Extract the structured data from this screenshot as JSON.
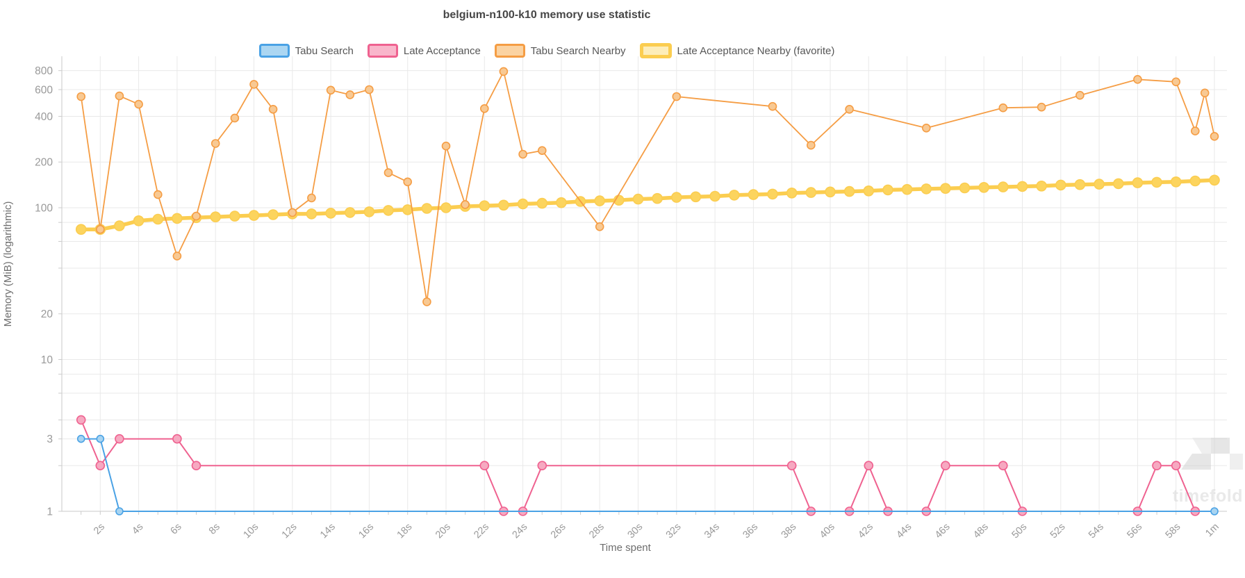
{
  "title": "belgium-n100-k10 memory use statistic",
  "watermark": {
    "text": "timefold"
  },
  "axes": {
    "x_title": "Time spent",
    "y_title": "Memory (MiB) (logarithmic)",
    "x_ticks": [
      {
        "t": 2,
        "label": "2s"
      },
      {
        "t": 4,
        "label": "4s"
      },
      {
        "t": 6,
        "label": "6s"
      },
      {
        "t": 8,
        "label": "8s"
      },
      {
        "t": 10,
        "label": "10s"
      },
      {
        "t": 12,
        "label": "12s"
      },
      {
        "t": 14,
        "label": "14s"
      },
      {
        "t": 16,
        "label": "16s"
      },
      {
        "t": 18,
        "label": "18s"
      },
      {
        "t": 20,
        "label": "20s"
      },
      {
        "t": 22,
        "label": "22s"
      },
      {
        "t": 24,
        "label": "24s"
      },
      {
        "t": 26,
        "label": "26s"
      },
      {
        "t": 28,
        "label": "28s"
      },
      {
        "t": 30,
        "label": "30s"
      },
      {
        "t": 32,
        "label": "32s"
      },
      {
        "t": 34,
        "label": "34s"
      },
      {
        "t": 36,
        "label": "36s"
      },
      {
        "t": 38,
        "label": "38s"
      },
      {
        "t": 40,
        "label": "40s"
      },
      {
        "t": 42,
        "label": "42s"
      },
      {
        "t": 44,
        "label": "44s"
      },
      {
        "t": 46,
        "label": "46s"
      },
      {
        "t": 48,
        "label": "48s"
      },
      {
        "t": 50,
        "label": "50s"
      },
      {
        "t": 52,
        "label": "52s"
      },
      {
        "t": 54,
        "label": "54s"
      },
      {
        "t": 56,
        "label": "56s"
      },
      {
        "t": 58,
        "label": "58s"
      },
      {
        "t": 60,
        "label": "1m"
      }
    ],
    "y_ticks_labeled": [
      800,
      600,
      400,
      200,
      100,
      20,
      10,
      3,
      1
    ],
    "y_grid_unlabeled": [
      80,
      60,
      40,
      8,
      6,
      4,
      2
    ]
  },
  "chart_data": {
    "type": "line",
    "title": "belgium-n100-k10 memory use statistic",
    "xlabel": "Time spent",
    "ylabel": "Memory (MiB) (logarithmic)",
    "x_unit": "seconds",
    "y_scale": "logarithmic",
    "x_range": [
      0,
      61
    ],
    "y_range": [
      1,
      1000
    ],
    "grid": true,
    "legend_position": "top-center",
    "series": [
      {
        "name": "Tabu Search",
        "color": "#4AA2E5",
        "marker_fill": "#A8D4F1",
        "legend_fill": "#ABD6F2",
        "line_width": 2,
        "marker_radius": 5,
        "legend_border_width": 3,
        "points": [
          [
            1,
            3
          ],
          [
            2,
            3
          ],
          [
            3,
            1
          ],
          [
            60,
            1
          ]
        ]
      },
      {
        "name": "Late Acceptance",
        "color": "#EF6290",
        "marker_fill": "#F6A9C1",
        "legend_fill": "#F9B6CB",
        "line_width": 2,
        "marker_radius": 6,
        "legend_border_width": 3,
        "points": [
          [
            1,
            4
          ],
          [
            2,
            2
          ],
          [
            3,
            3
          ],
          [
            6,
            3
          ],
          [
            7,
            2
          ],
          [
            22,
            2
          ],
          [
            23,
            1
          ],
          [
            24,
            1
          ],
          [
            25,
            2
          ],
          [
            38,
            2
          ],
          [
            39,
            1
          ],
          [
            41,
            1
          ],
          [
            42,
            2
          ],
          [
            43,
            1
          ],
          [
            45,
            1
          ],
          [
            46,
            2
          ],
          [
            49,
            2
          ],
          [
            50,
            1
          ],
          [
            56,
            1
          ],
          [
            57,
            2
          ],
          [
            58,
            2
          ],
          [
            59,
            1
          ]
        ]
      },
      {
        "name": "Tabu Search Nearby",
        "color": "#F59D44",
        "marker_fill": "#F8C993",
        "legend_fill": "#FBD3A2",
        "line_width": 1.8,
        "marker_radius": 5.5,
        "legend_border_width": 3,
        "points": [
          [
            1,
            540
          ],
          [
            2,
            72
          ],
          [
            3,
            545
          ],
          [
            4,
            480
          ],
          [
            5,
            122
          ],
          [
            6,
            48
          ],
          [
            7,
            88
          ],
          [
            8,
            265
          ],
          [
            9,
            390
          ],
          [
            10,
            650
          ],
          [
            11,
            445
          ],
          [
            12,
            93
          ],
          [
            13,
            116
          ],
          [
            14,
            595
          ],
          [
            15,
            555
          ],
          [
            16,
            600
          ],
          [
            17,
            170
          ],
          [
            18,
            148
          ],
          [
            19,
            24
          ],
          [
            20,
            255
          ],
          [
            21,
            105
          ],
          [
            22,
            450
          ],
          [
            23,
            790
          ],
          [
            24,
            225
          ],
          [
            25,
            238
          ],
          [
            28,
            75
          ],
          [
            32,
            540
          ],
          [
            37,
            465
          ],
          [
            39,
            258
          ],
          [
            41,
            445
          ],
          [
            45,
            335
          ],
          [
            49,
            455
          ],
          [
            51,
            460
          ],
          [
            53,
            550
          ],
          [
            56,
            700
          ],
          [
            58,
            675
          ],
          [
            59,
            320
          ],
          [
            59.5,
            570
          ],
          [
            60,
            295
          ]
        ]
      },
      {
        "name": "Late Acceptance Nearby (favorite)",
        "color": "#FBCD50",
        "marker_fill": "#FCD45E",
        "legend_fill": "#FDEDB9",
        "line_width": 5.5,
        "marker_radius": 7,
        "legend_border_width": 5,
        "favorite": true,
        "points": [
          [
            1,
            72
          ],
          [
            2,
            72
          ],
          [
            3,
            76
          ],
          [
            4,
            82
          ],
          [
            5,
            84
          ],
          [
            6,
            85
          ],
          [
            7,
            86
          ],
          [
            8,
            87
          ],
          [
            9,
            88
          ],
          [
            10,
            89
          ],
          [
            11,
            90
          ],
          [
            12,
            91
          ],
          [
            13,
            91
          ],
          [
            14,
            92
          ],
          [
            15,
            93
          ],
          [
            16,
            94
          ],
          [
            17,
            96
          ],
          [
            18,
            97
          ],
          [
            19,
            99
          ],
          [
            20,
            100
          ],
          [
            21,
            102
          ],
          [
            22,
            103
          ],
          [
            23,
            104
          ],
          [
            24,
            106
          ],
          [
            25,
            107
          ],
          [
            26,
            108
          ],
          [
            27,
            110
          ],
          [
            28,
            111
          ],
          [
            29,
            112
          ],
          [
            30,
            114
          ],
          [
            31,
            115
          ],
          [
            32,
            117
          ],
          [
            33,
            118
          ],
          [
            34,
            119
          ],
          [
            35,
            121
          ],
          [
            36,
            122
          ],
          [
            37,
            123
          ],
          [
            38,
            125
          ],
          [
            39,
            126
          ],
          [
            40,
            127
          ],
          [
            41,
            128
          ],
          [
            42,
            129
          ],
          [
            43,
            131
          ],
          [
            44,
            132
          ],
          [
            45,
            133
          ],
          [
            46,
            134
          ],
          [
            47,
            135
          ],
          [
            48,
            136
          ],
          [
            49,
            137
          ],
          [
            50,
            138
          ],
          [
            51,
            139
          ],
          [
            52,
            141
          ],
          [
            53,
            142
          ],
          [
            54,
            143
          ],
          [
            55,
            144
          ],
          [
            56,
            146
          ],
          [
            57,
            147
          ],
          [
            58,
            148
          ],
          [
            59,
            150
          ],
          [
            60,
            152
          ]
        ]
      }
    ],
    "draw_order": [
      1,
      0,
      3,
      2
    ]
  },
  "style": {
    "grid_color": "#e9e9e9",
    "axis_color": "#c9c9c9",
    "tick_color": "#cccccc",
    "tick_label_color": "#999999",
    "axis_title_color": "#6e6e6e",
    "watermark_color": "#d8d8d8"
  }
}
